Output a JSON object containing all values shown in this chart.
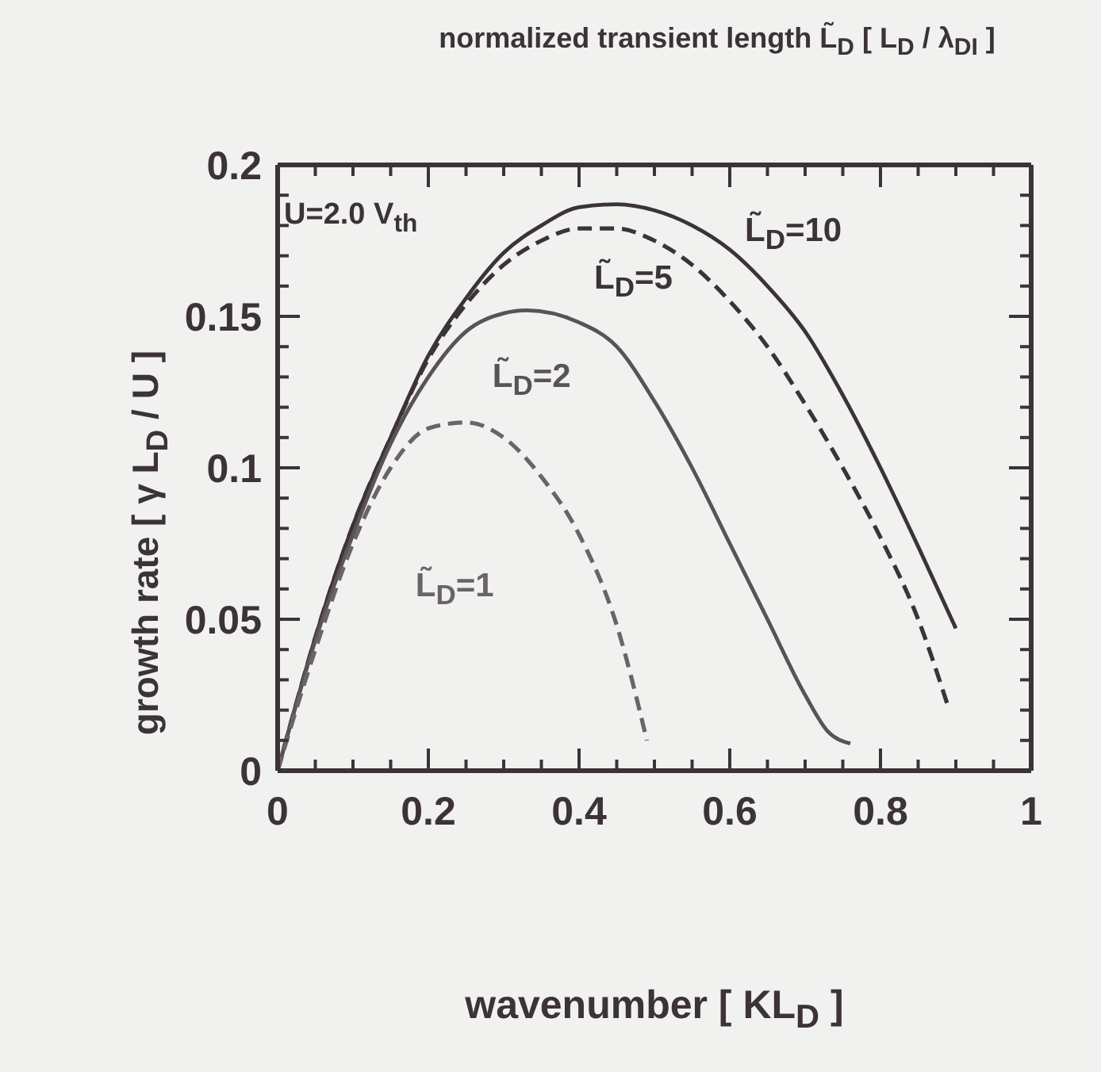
{
  "chart_data": {
    "type": "line",
    "title": "normalized transient length L̃$_{D}$ [ L$_{D}$ / λ$_{DI}$ ]",
    "xlabel": "wavenumber [ KL$_{D}$ ]",
    "ylabel": "growth rate [ γ L$_{D}$ / U ]",
    "annotations": [
      "U=2.0 V$_{th}$"
    ],
    "xlim": [
      0,
      1
    ],
    "ylim": [
      0,
      0.2
    ],
    "xticks": [
      0,
      {
        "value": 0.05,
        "label": null
      },
      {
        "value": 0.1,
        "label": null
      },
      {
        "value": 0.15,
        "label": null
      },
      {
        "value": 0.2,
        "label": "0.2"
      },
      {
        "value": 0.25,
        "label": null
      },
      {
        "value": 0.3,
        "label": null
      },
      {
        "value": 0.35,
        "label": null
      },
      {
        "value": 0.4,
        "label": "0.4"
      },
      {
        "value": 0.45,
        "label": null
      },
      {
        "value": 0.5,
        "label": null
      },
      {
        "value": 0.55,
        "label": null
      },
      {
        "value": 0.6,
        "label": "0.6"
      },
      {
        "value": 0.65,
        "label": null
      },
      {
        "value": 0.7,
        "label": null
      },
      {
        "value": 0.75,
        "label": null
      },
      {
        "value": 0.8,
        "label": "0.8"
      },
      {
        "value": 0.85,
        "label": null
      },
      {
        "value": 0.9,
        "label": null
      },
      {
        "value": 0.95,
        "label": null
      },
      1
    ],
    "yticks": [
      0,
      {
        "value": 0.01,
        "label": null
      },
      {
        "value": 0.02,
        "label": null
      },
      {
        "value": 0.03,
        "label": null
      },
      {
        "value": 0.04,
        "label": null
      },
      0.05,
      {
        "value": 0.06,
        "label": null
      },
      {
        "value": 0.07,
        "label": null
      },
      {
        "value": 0.08,
        "label": null
      },
      {
        "value": 0.09,
        "label": null
      },
      0.1,
      {
        "value": 0.11,
        "label": null
      },
      {
        "value": 0.12,
        "label": null
      },
      {
        "value": 0.13,
        "label": null
      },
      {
        "value": 0.14,
        "label": null
      },
      0.15,
      {
        "value": 0.16,
        "label": null
      },
      {
        "value": 0.17,
        "label": null
      },
      {
        "value": 0.18,
        "label": null
      },
      {
        "value": 0.19,
        "label": null
      },
      0.2
    ],
    "marker": "none",
    "series": [
      {
        "name": "L̃$_{D}$=10",
        "color": "#3b3336",
        "line_style": "solid",
        "x": [
          0,
          0.02,
          0.05,
          0.1,
          0.15,
          0.2,
          0.25,
          0.3,
          0.35,
          0.4,
          0.45,
          0.5,
          0.55,
          0.6,
          0.65,
          0.7,
          0.75,
          0.8,
          0.85,
          0.9
        ],
        "values": [
          0,
          0.018,
          0.044,
          0.081,
          0.11,
          0.137,
          0.156,
          0.171,
          0.18,
          0.186,
          0.187,
          0.185,
          0.18,
          0.172,
          0.16,
          0.145,
          0.124,
          0.1,
          0.074,
          0.047
        ]
      },
      {
        "name": "L̃$_{D}$=5",
        "color": "#3b3336",
        "line_style": "dashed",
        "x": [
          0,
          0.02,
          0.05,
          0.1,
          0.15,
          0.2,
          0.25,
          0.3,
          0.35,
          0.4,
          0.45,
          0.5,
          0.55,
          0.6,
          0.65,
          0.7,
          0.75,
          0.8,
          0.85,
          0.89
        ],
        "values": [
          0,
          0.018,
          0.044,
          0.081,
          0.11,
          0.136,
          0.154,
          0.167,
          0.175,
          0.179,
          0.179,
          0.175,
          0.167,
          0.155,
          0.14,
          0.121,
          0.1,
          0.077,
          0.05,
          0.021
        ]
      },
      {
        "name": "L̃$_{D}$=2",
        "color": "#5a5356",
        "line_style": "solid",
        "x": [
          0,
          0.05,
          0.1,
          0.15,
          0.2,
          0.25,
          0.3,
          0.33,
          0.4,
          0.45,
          0.5,
          0.55,
          0.6,
          0.65,
          0.7,
          0.73,
          0.76
        ],
        "values": [
          0,
          0.043,
          0.078,
          0.108,
          0.13,
          0.145,
          0.151,
          0.152,
          0.148,
          0.14,
          0.122,
          0.1,
          0.075,
          0.05,
          0.025,
          0.013,
          0.009
        ]
      },
      {
        "name": "L̃$_{D}$=1",
        "color": "#6b6467",
        "line_style": "dashed",
        "x": [
          0,
          0.05,
          0.1,
          0.15,
          0.2,
          0.25,
          0.3,
          0.35,
          0.4,
          0.45,
          0.49
        ],
        "values": [
          0,
          0.04,
          0.075,
          0.1,
          0.113,
          0.115,
          0.11,
          0.097,
          0.078,
          0.048,
          0.01
        ]
      }
    ]
  }
}
